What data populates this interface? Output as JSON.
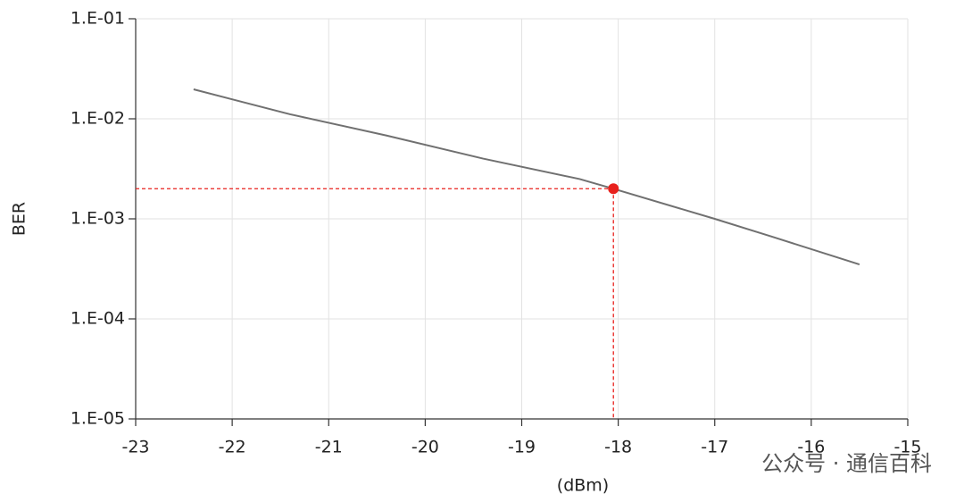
{
  "chart_data": {
    "type": "line",
    "x_label": "(dBm)",
    "y_label": "BER",
    "x": [
      -22.4,
      -21.4,
      -20.4,
      -19.4,
      -18.4,
      -18.05,
      -17,
      -16.4,
      -15.5
    ],
    "values": [
      0.0197,
      0.0111,
      0.0068,
      0.004,
      0.0025,
      0.002,
      0.001,
      0.00066,
      0.00035
    ],
    "color": "#707070",
    "xlim": [
      -23,
      -15
    ],
    "xticks": [
      -23,
      -22,
      -21,
      -20,
      -19,
      -18,
      -17,
      -16,
      -15
    ],
    "ylim": [
      1e-05,
      0.1
    ],
    "log_y": true,
    "yticks": [
      {
        "value": 1e-05,
        "label": "1.E-05"
      },
      {
        "value": 0.0001,
        "label": "1.E-04"
      },
      {
        "value": 0.001,
        "label": "1.E-03"
      },
      {
        "value": 0.01,
        "label": "1.E-02"
      },
      {
        "value": 0.1,
        "label": "1.E-01"
      }
    ],
    "grid": true,
    "marker": {
      "x": -18.05,
      "y": 0.002,
      "color": "#e8201c"
    },
    "watermark": "公众号 · 通信百科"
  }
}
